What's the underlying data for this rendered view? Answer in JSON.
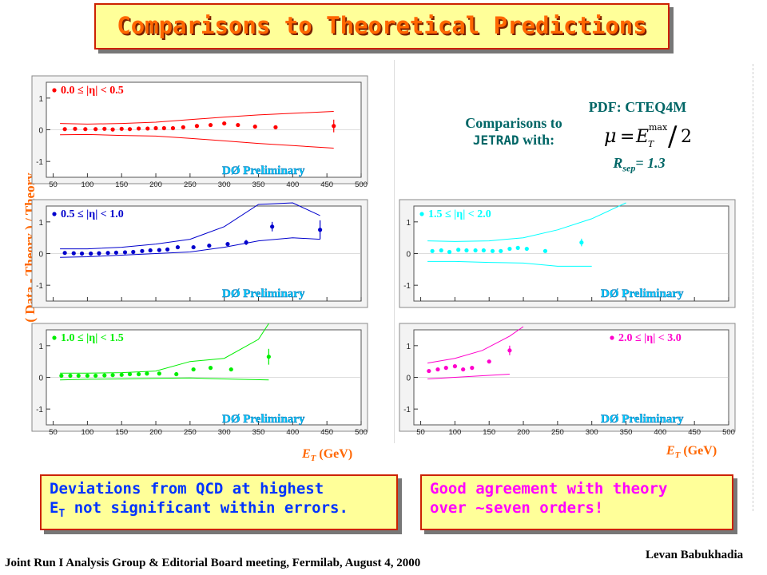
{
  "title": "Comparisons to Theoretical Predictions",
  "y_axis_label": "( Data - Theory ) / Theory",
  "x_axis_label_et": "E",
  "x_axis_label_sub": "T",
  "x_axis_label_unit": "(GeV)",
  "info": {
    "comparisons_line1": "Comparisons to",
    "comparisons_line2_mono": "JETRAD",
    "comparisons_line2_rest": " with:",
    "pdf": "PDF: CTEQ4M",
    "rsep_r": "R",
    "rsep_sub": "sep",
    "rsep_value": "= 1.3"
  },
  "formula": {
    "mu": "μ",
    "equals": "=",
    "e": "E",
    "sub": "T",
    "sup": "max",
    "slash": "/",
    "two": "2"
  },
  "notes": {
    "left_line1": "Deviations from QCD at highest",
    "left_line2_e": "E",
    "left_line2_sub": "T",
    "left_line2_rest": " not significant within errors.",
    "right_line1": "Good agreement with theory",
    "right_line2": "over ~seven orders!"
  },
  "footer": {
    "left": "Joint Run I Analysis Group & Editorial Board meeting, Fermilab, August 4, 2000",
    "right": "Levan Babukhadia"
  },
  "chart_data": [
    {
      "type": "scatter",
      "label": "0.0 ≤ |η| < 0.5",
      "watermark": "DØ Preliminary",
      "color": "#ff0000",
      "xlim": [
        40,
        500
      ],
      "ylim": [
        -1.5,
        1.5
      ],
      "xticks": [
        50,
        100,
        150,
        200,
        250,
        300,
        350,
        400,
        450,
        500
      ],
      "yticks": [
        1,
        0,
        -1
      ],
      "points": [
        [
          67,
          0.02
        ],
        [
          82,
          0.03
        ],
        [
          97,
          0.02
        ],
        [
          112,
          0.02
        ],
        [
          125,
          0.03
        ],
        [
          137,
          0.01
        ],
        [
          150,
          0.03
        ],
        [
          162,
          0.02
        ],
        [
          175,
          0.04
        ],
        [
          188,
          0.04
        ],
        [
          200,
          0.05
        ],
        [
          212,
          0.05
        ],
        [
          225,
          0.05
        ],
        [
          240,
          0.08
        ],
        [
          260,
          0.12
        ],
        [
          280,
          0.15
        ],
        [
          300,
          0.2
        ],
        [
          320,
          0.15
        ],
        [
          345,
          0.1
        ],
        [
          375,
          0.08
        ],
        [
          460,
          0.12
        ]
      ],
      "errors": [
        0,
        0,
        0,
        0,
        0,
        0,
        0,
        0,
        0,
        0,
        0,
        0,
        0,
        0,
        0,
        0,
        0,
        0.05,
        0.05,
        0.06,
        0.2
      ],
      "band_upper": [
        [
          60,
          0.2
        ],
        [
          100,
          0.18
        ],
        [
          150,
          0.2
        ],
        [
          200,
          0.24
        ],
        [
          250,
          0.32
        ],
        [
          300,
          0.4
        ],
        [
          350,
          0.47
        ],
        [
          400,
          0.52
        ],
        [
          460,
          0.58
        ]
      ],
      "band_lower": [
        [
          60,
          -0.16
        ],
        [
          100,
          -0.15
        ],
        [
          150,
          -0.18
        ],
        [
          200,
          -0.2
        ],
        [
          250,
          -0.27
        ],
        [
          300,
          -0.35
        ],
        [
          350,
          -0.43
        ],
        [
          400,
          -0.5
        ],
        [
          460,
          -0.58
        ]
      ]
    },
    {
      "type": "scatter",
      "label": "0.5 ≤ |η| < 1.0",
      "watermark": "DØ Preliminary",
      "color": "#0000cc",
      "xlim": [
        40,
        500
      ],
      "ylim": [
        -1.5,
        1.5
      ],
      "xticks": [
        50,
        100,
        150,
        200,
        250,
        300,
        350,
        400,
        450,
        500
      ],
      "yticks": [
        1,
        0,
        -1
      ],
      "points": [
        [
          67,
          0.02
        ],
        [
          80,
          0.01
        ],
        [
          92,
          0.0
        ],
        [
          105,
          0.0
        ],
        [
          117,
          0.01
        ],
        [
          130,
          0.02
        ],
        [
          142,
          0.03
        ],
        [
          155,
          0.04
        ],
        [
          167,
          0.05
        ],
        [
          180,
          0.08
        ],
        [
          192,
          0.1
        ],
        [
          205,
          0.11
        ],
        [
          217,
          0.13
        ],
        [
          232,
          0.2
        ],
        [
          255,
          0.2
        ],
        [
          278,
          0.25
        ],
        [
          305,
          0.3
        ],
        [
          332,
          0.35
        ],
        [
          370,
          0.85
        ],
        [
          440,
          0.75
        ]
      ],
      "errors": [
        0,
        0,
        0,
        0,
        0,
        0,
        0,
        0,
        0,
        0,
        0,
        0,
        0,
        0,
        0,
        0,
        0,
        0.08,
        0.15,
        0.3
      ],
      "band_upper": [
        [
          60,
          0.15
        ],
        [
          100,
          0.15
        ],
        [
          150,
          0.2
        ],
        [
          200,
          0.3
        ],
        [
          250,
          0.45
        ],
        [
          300,
          0.85
        ],
        [
          350,
          1.55
        ],
        [
          400,
          1.6
        ],
        [
          440,
          1.2
        ]
      ],
      "band_lower": [
        [
          60,
          -0.12
        ],
        [
          100,
          -0.1
        ],
        [
          150,
          -0.05
        ],
        [
          200,
          0.0
        ],
        [
          250,
          0.05
        ],
        [
          300,
          0.2
        ],
        [
          350,
          0.4
        ],
        [
          400,
          0.5
        ],
        [
          440,
          0.45
        ]
      ]
    },
    {
      "type": "scatter",
      "label": "1.0 ≤ |η| < 1.5",
      "watermark": "DØ Preliminary",
      "color": "#00ee00",
      "xlim": [
        40,
        500
      ],
      "ylim": [
        -1.5,
        1.5
      ],
      "xticks": [
        50,
        100,
        150,
        200,
        250,
        300,
        350,
        400,
        450,
        500
      ],
      "yticks": [
        1,
        0,
        -1
      ],
      "points": [
        [
          62,
          0.05
        ],
        [
          75,
          0.05
        ],
        [
          87,
          0.05
        ],
        [
          100,
          0.05
        ],
        [
          112,
          0.05
        ],
        [
          125,
          0.06
        ],
        [
          137,
          0.07
        ],
        [
          150,
          0.08
        ],
        [
          162,
          0.1
        ],
        [
          175,
          0.1
        ],
        [
          187,
          0.12
        ],
        [
          205,
          0.12
        ],
        [
          230,
          0.1
        ],
        [
          255,
          0.25
        ],
        [
          280,
          0.3
        ],
        [
          310,
          0.25
        ],
        [
          365,
          0.65
        ]
      ],
      "errors": [
        0,
        0,
        0,
        0,
        0,
        0,
        0,
        0,
        0,
        0,
        0,
        0,
        0,
        0,
        0,
        0,
        0.25
      ],
      "band_upper": [
        [
          60,
          0.13
        ],
        [
          100,
          0.13
        ],
        [
          150,
          0.15
        ],
        [
          200,
          0.2
        ],
        [
          250,
          0.5
        ],
        [
          300,
          0.6
        ],
        [
          350,
          1.2
        ],
        [
          365,
          1.7
        ]
      ],
      "band_lower": [
        [
          60,
          -0.08
        ],
        [
          100,
          -0.06
        ],
        [
          150,
          -0.05
        ],
        [
          200,
          -0.03
        ],
        [
          250,
          -0.02
        ],
        [
          300,
          -0.05
        ],
        [
          365,
          -0.08
        ]
      ]
    },
    {
      "type": "scatter",
      "label": "1.5 ≤ |η| < 2.0",
      "watermark": "DØ Preliminary",
      "color": "#00ffff",
      "xlim": [
        40,
        500
      ],
      "ylim": [
        -1.5,
        1.5
      ],
      "xticks": [
        50,
        100,
        150,
        200,
        250,
        300,
        350,
        400,
        450,
        500
      ],
      "yticks": [
        1,
        0,
        -1
      ],
      "points": [
        [
          67,
          0.08
        ],
        [
          80,
          0.1
        ],
        [
          92,
          0.05
        ],
        [
          105,
          0.12
        ],
        [
          117,
          0.1
        ],
        [
          130,
          0.1
        ],
        [
          142,
          0.1
        ],
        [
          155,
          0.08
        ],
        [
          167,
          0.08
        ],
        [
          180,
          0.15
        ],
        [
          192,
          0.18
        ],
        [
          205,
          0.15
        ],
        [
          232,
          0.08
        ],
        [
          285,
          0.35
        ]
      ],
      "errors": [
        0,
        0,
        0,
        0,
        0,
        0,
        0,
        0,
        0,
        0,
        0,
        0,
        0,
        0.12
      ],
      "band_upper": [
        [
          60,
          0.4
        ],
        [
          100,
          0.38
        ],
        [
          150,
          0.4
        ],
        [
          200,
          0.5
        ],
        [
          250,
          0.75
        ],
        [
          300,
          1.1
        ],
        [
          350,
          1.6
        ]
      ],
      "band_lower": [
        [
          60,
          -0.25
        ],
        [
          100,
          -0.25
        ],
        [
          150,
          -0.28
        ],
        [
          200,
          -0.3
        ],
        [
          250,
          -0.4
        ],
        [
          300,
          -0.4
        ]
      ]
    },
    {
      "type": "scatter",
      "label": "2.0 ≤ |η| < 3.0",
      "watermark": "DØ Preliminary",
      "color": "#ff00cc",
      "xlim": [
        40,
        500
      ],
      "ylim": [
        -1.5,
        1.5
      ],
      "xticks": [
        50,
        100,
        150,
        200,
        250,
        300,
        350,
        400,
        450,
        500
      ],
      "yticks": [
        1,
        0,
        -1
      ],
      "points": [
        [
          62,
          0.2
        ],
        [
          75,
          0.25
        ],
        [
          87,
          0.3
        ],
        [
          100,
          0.35
        ],
        [
          112,
          0.25
        ],
        [
          125,
          0.3
        ],
        [
          150,
          0.5
        ],
        [
          180,
          0.85
        ]
      ],
      "errors": [
        0,
        0,
        0,
        0,
        0,
        0,
        0.05,
        0.15
      ],
      "band_upper": [
        [
          60,
          0.45
        ],
        [
          100,
          0.6
        ],
        [
          140,
          0.85
        ],
        [
          180,
          1.3
        ],
        [
          200,
          1.6
        ]
      ],
      "band_lower": [
        [
          60,
          -0.05
        ],
        [
          100,
          0.0
        ],
        [
          140,
          0.05
        ],
        [
          180,
          0.1
        ]
      ]
    }
  ]
}
